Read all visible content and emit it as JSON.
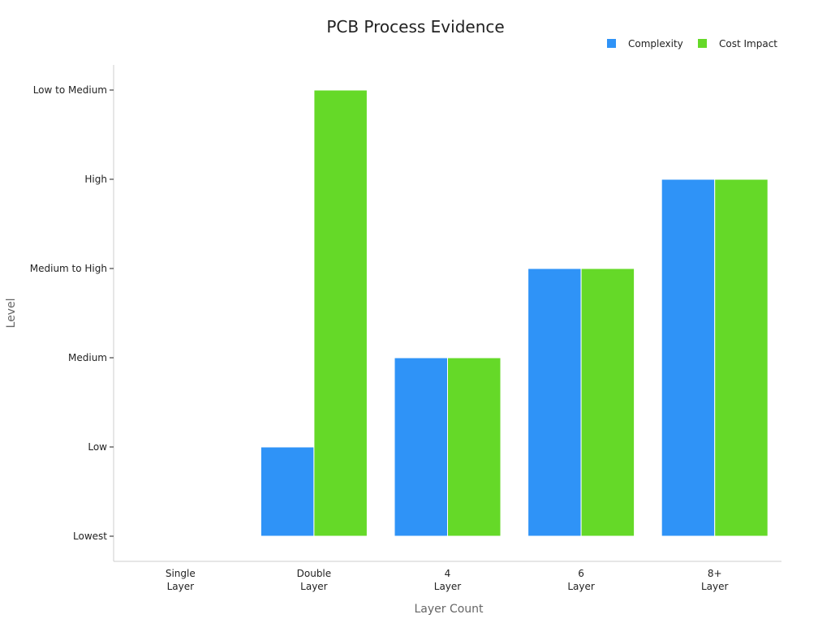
{
  "chart_data": {
    "type": "bar",
    "title": "PCB Process Evidence",
    "xlabel": "Layer Count",
    "ylabel": "Level",
    "categories": [
      [
        "Single",
        "Layer"
      ],
      [
        "Double",
        "Layer"
      ],
      [
        "4",
        "Layer"
      ],
      [
        "6",
        "Layer"
      ],
      [
        "8+",
        "Layer"
      ]
    ],
    "y_levels": [
      "Lowest",
      "Low",
      "Medium",
      "Medium to High",
      "High",
      "Low to Medium"
    ],
    "series": [
      {
        "name": "Complexity",
        "color": "#2f93f7",
        "values": [
          null,
          "Low",
          "Medium",
          "Medium to High",
          "High"
        ]
      },
      {
        "name": "Cost Impact",
        "color": "#65d928",
        "values": [
          null,
          "Low to Medium",
          "Medium",
          "Medium to High",
          "High"
        ]
      }
    ],
    "legend": "top-right",
    "grid": false
  }
}
